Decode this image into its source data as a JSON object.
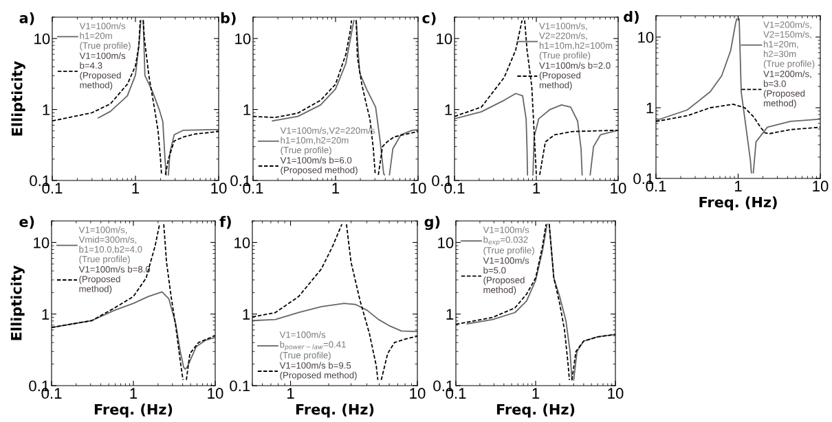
{
  "chart_data": [
    {
      "type": "line",
      "title": "a)",
      "ylabel": "Ellipticity",
      "xlim": [
        0.1,
        10
      ],
      "ylim": [
        0.1,
        20
      ],
      "xticks": [
        0.1,
        1,
        10
      ],
      "yticks": [
        0.1,
        1,
        10
      ],
      "log": "xy",
      "grid": false,
      "legend": "top left",
      "marker": "none",
      "series": [
        {
          "name": "V1=100m/s\nh1=20m\n(True profile)",
          "color": "#666666",
          "line_style": "solid",
          "x": [
            0.358,
            0.5,
            0.8,
            1.0,
            1.1,
            1.16,
            1.2,
            1.24,
            1.3,
            1.6,
            1.93,
            2.13,
            2.27,
            2.34,
            2.4,
            2.49,
            2.6,
            2.92,
            3.77,
            8.6,
            10
          ],
          "values": [
            0.76,
            0.94,
            1.56,
            3.06,
            8,
            18,
            null,
            18,
            3,
            1.8,
            1.0,
            0.68,
            0.195,
            0.12,
            null,
            0.12,
            0.25,
            0.44,
            0.51,
            0.52,
            0.52
          ]
        },
        {
          "name": "V1=100m/s\nb=4.3\n(Proposed\nmethod)",
          "color": "#000000",
          "line_style": "dashed",
          "x": [
            0.1,
            0.3,
            0.5,
            0.8,
            1.0,
            1.1,
            1.14,
            1.2,
            1.24,
            1.28,
            1.45,
            1.7,
            1.87,
            2.0,
            2.06,
            2.2,
            2.29,
            2.49,
            2.92,
            3.77,
            5.17,
            10
          ],
          "values": [
            0.69,
            0.9,
            1.2,
            2.28,
            4.1,
            8,
            18,
            null,
            18,
            10,
            3,
            1.0,
            0.5,
            0.2,
            0.12,
            null,
            0.12,
            0.2,
            0.36,
            0.41,
            0.45,
            0.49
          ]
        }
      ]
    },
    {
      "type": "line",
      "title": "b)",
      "xlim": [
        0.1,
        10
      ],
      "ylim": [
        0.1,
        20
      ],
      "xticks": [
        0.1,
        1,
        10
      ],
      "yticks": [
        0.1,
        1,
        10
      ],
      "log": "xy",
      "grid": false,
      "legend": "bottom left",
      "marker": "none",
      "series": [
        {
          "name": "V1=100m/s,V2=220m/s\nh1=10m,h2=20m\n(True profile)",
          "color": "#666666",
          "line_style": "solid",
          "x": [
            0.172,
            0.35,
            0.66,
            1.0,
            1.33,
            1.61,
            1.67,
            1.72,
            1.78,
            1.96,
            2.37,
            3.06,
            3.48,
            3.83,
            3.91,
            4.2,
            4.5,
            4.95,
            6.19,
            8.5,
            10
          ],
          "values": [
            0.69,
            0.8,
            1.16,
            1.95,
            4.4,
            14.5,
            18,
            null,
            18,
            3.28,
            1.95,
            1.08,
            0.35,
            0.125,
            0.12,
            null,
            0.12,
            0.28,
            0.44,
            0.51,
            0.52
          ]
        },
        {
          "name": "V1=100m/s b=6.0\n(Proposed method)",
          "color": "#000000",
          "line_style": "dashed",
          "x": [
            0.1,
            0.184,
            0.35,
            0.66,
            1.0,
            1.33,
            1.52,
            1.56,
            1.7,
            1.78,
            1.84,
            2.08,
            2.37,
            2.61,
            2.87,
            3.03,
            3.15,
            3.3,
            3.71,
            4.22,
            5.1,
            6.59,
            10
          ],
          "values": [
            0.8,
            0.77,
            0.89,
            1.35,
            2.27,
            5.95,
            13.5,
            18,
            null,
            18,
            5.5,
            2.27,
            1.16,
            0.74,
            0.28,
            0.12,
            null,
            0.12,
            0.3,
            0.35,
            0.41,
            0.44,
            0.49
          ]
        }
      ]
    },
    {
      "type": "line",
      "title": "c)",
      "xlim": [
        0.1,
        10
      ],
      "ylim": [
        0.1,
        20
      ],
      "xticks": [
        0.1,
        1,
        10
      ],
      "yticks": [
        0.1,
        1,
        10
      ],
      "log": "xy",
      "grid": false,
      "legend": "top right",
      "marker": "none",
      "series": [
        {
          "name": "V1=100m/s,\nV2=220m/s,\nh1=10m,h2=100m\n(True profile)",
          "color": "#666666",
          "line_style": "solid",
          "x": [
            0.1,
            0.213,
            0.405,
            0.56,
            0.68,
            0.75,
            0.77,
            0.78,
            0.85,
            0.91,
            0.94,
            1.07,
            1.47,
            2.03,
            2.63,
            3.19,
            3.52,
            3.63,
            4.1,
            4.55,
            5.0,
            6.08,
            10
          ],
          "values": [
            0.74,
            0.93,
            1.35,
            1.68,
            1.56,
            0.74,
            0.28,
            0.12,
            null,
            0.12,
            0.41,
            0.74,
            1.0,
            1.16,
            1.08,
            0.69,
            0.28,
            0.12,
            null,
            0.12,
            0.3,
            0.44,
            0.51
          ]
        },
        {
          "name": "V1=100m/s b=2.0\n(Proposed\nmethod)",
          "color": "#000000",
          "line_style": "dashed",
          "x": [
            0.1,
            0.213,
            0.405,
            0.56,
            0.66,
            0.67,
            0.7,
            0.72,
            0.77,
            0.88,
            0.94,
            1.0,
            1.05,
            1.1,
            1.29,
            1.67,
            2.8,
            10
          ],
          "values": [
            0.8,
            1.08,
            2.83,
            6.9,
            16.8,
            18,
            null,
            18,
            6.9,
            2.1,
            0.48,
            0.12,
            null,
            0.12,
            0.35,
            0.44,
            0.49,
            0.51
          ]
        }
      ]
    },
    {
      "type": "line",
      "title": "d)",
      "xlabel": "Freq. (Hz)",
      "xlim": [
        0.1,
        10
      ],
      "ylim": [
        0.1,
        20
      ],
      "xticks": [
        0.1,
        1,
        10
      ],
      "yticks": [
        0.1,
        1,
        10
      ],
      "log": "xy",
      "grid": false,
      "legend": "top right",
      "marker": "none",
      "series": [
        {
          "name": "V1=200m/s,\nV2=150m/s,\nh1=20m,\nh2=30m\n(True profile)",
          "color": "#666666",
          "line_style": "solid",
          "x": [
            0.1,
            0.24,
            0.457,
            0.63,
            0.81,
            0.93,
            0.96,
            1.0,
            1.03,
            1.09,
            1.24,
            1.41,
            1.45,
            1.49,
            1.53,
            1.65,
            2.27,
            4.32,
            10
          ],
          "values": [
            0.66,
            0.93,
            1.68,
            2.83,
            6.4,
            15.6,
            18,
            null,
            18,
            1.68,
            0.55,
            0.18,
            0.12,
            null,
            0.12,
            0.33,
            0.53,
            0.64,
            0.69
          ]
        },
        {
          "name": "V1=200m/s,\nb=3.0\n(Proposed\nmethod)",
          "color": "#000000",
          "line_style": "dashed",
          "x": [
            0.1,
            0.24,
            0.457,
            0.87,
            1.2,
            1.55,
            1.87,
            2.13,
            2.42,
            4.32,
            10
          ],
          "values": [
            0.64,
            0.77,
            1.0,
            1.12,
            1.0,
            0.74,
            0.53,
            0.44,
            0.43,
            0.49,
            0.53
          ]
        }
      ]
    },
    {
      "type": "line",
      "title": "e)",
      "xlabel": "Freq. (Hz)",
      "ylabel": "Ellipticity",
      "xlim": [
        0.1,
        10
      ],
      "ylim": [
        0.1,
        20
      ],
      "xticks": [
        0.1,
        1,
        10
      ],
      "yticks": [
        0.1,
        1,
        10
      ],
      "log": "xy",
      "grid": false,
      "legend": "top left",
      "marker": "none",
      "series": [
        {
          "name": "V1=100m/s,\nVmid=300m/s,\nb1=10.0,b2=4.0\n(True profile)",
          "color": "#666666",
          "line_style": "solid",
          "x": [
            0.1,
            0.31,
            0.59,
            1.0,
            1.52,
            2.24,
            2.71,
            3.29,
            3.74,
            4.12,
            4.3,
            4.53,
            5.86,
            7.58,
            10
          ],
          "values": [
            0.65,
            0.81,
            1.13,
            1.41,
            1.76,
            2.04,
            1.64,
            0.73,
            0.3,
            0.18,
            0.17,
            0.18,
            0.35,
            0.43,
            0.47
          ]
        },
        {
          "name": "V1=100m/s b=8.0\n(Proposed\nmethod)",
          "color": "#000000",
          "line_style": "dashed",
          "x": [
            0.1,
            0.31,
            0.59,
            1.0,
            1.43,
            1.84,
            2.09,
            2.2,
            2.35,
            2.54,
            2.89,
            3.29,
            3.74,
            4.04,
            4.25,
            4.44,
            4.9,
            6.25,
            10
          ],
          "values": [
            0.65,
            0.81,
            1.22,
            1.76,
            3.19,
            8.9,
            18,
            null,
            18,
            5.3,
            1.76,
            0.68,
            0.22,
            0.12,
            null,
            0.12,
            0.28,
            0.4,
            0.5
          ]
        }
      ]
    },
    {
      "type": "line",
      "title": "f)",
      "xlabel": "Freq. (Hz)",
      "xlim": [
        0.5,
        10
      ],
      "ylim": [
        0.1,
        20
      ],
      "xticks": [
        1,
        10
      ],
      "yticks": [
        0.1,
        1,
        10
      ],
      "log": "xy",
      "grid": false,
      "legend": "bottom left",
      "marker": "none",
      "series": [
        {
          "name": "V1=100m/s\nb$_{power−law}$=0.41\n(True profile)",
          "color": "#666666",
          "line_style": "solid",
          "x": [
            0.5,
            0.76,
            1.16,
            1.75,
            2.65,
            3.26,
            4.01,
            4.94,
            6.08,
            7.48,
            10
          ],
          "values": [
            0.81,
            0.84,
            1.05,
            1.27,
            1.41,
            1.36,
            1.13,
            0.84,
            0.68,
            0.58,
            0.57
          ]
        },
        {
          "name": "V1=100m/s b=9.5\n(Proposed method)",
          "color": "#000000",
          "line_style": "dashed",
          "x": [
            0.5,
            0.76,
            1.16,
            1.75,
            2.15,
            2.54,
            2.65,
            2.76,
            3.0,
            3.54,
            4.18,
            4.74,
            4.88,
            5.0,
            5.19,
            5.83,
            6.6,
            8.12,
            10
          ],
          "values": [
            0.91,
            1.05,
            1.76,
            4.27,
            8.9,
            18,
            null,
            18,
            5.3,
            1.52,
            0.54,
            0.19,
            0.12,
            null,
            0.12,
            0.28,
            0.4,
            0.45,
            0.49
          ]
        }
      ]
    },
    {
      "type": "line",
      "title": "g)",
      "xlabel": "Freq. (Hz)",
      "xlim": [
        0.1,
        10
      ],
      "ylim": [
        0.1,
        20
      ],
      "xticks": [
        0.1,
        1,
        10
      ],
      "yticks": [
        0.1,
        1,
        10
      ],
      "log": "xy",
      "grid": false,
      "legend": "top left",
      "marker": "none",
      "series": [
        {
          "name": "V1=100m/s\nb$_{exp}$=0.032\n(True profile)",
          "color": "#666666",
          "line_style": "solid",
          "x": [
            0.139,
            0.29,
            0.55,
            0.77,
            1.0,
            1.22,
            1.39,
            1.43,
            1.48,
            1.69,
            2.0,
            2.4,
            2.7,
            2.85,
            2.92,
            3.0,
            3.3,
            4.0,
            6.0,
            10
          ],
          "values": [
            0.73,
            0.84,
            1.05,
            1.52,
            2.96,
            7.7,
            18,
            null,
            18,
            3.2,
            1.76,
            0.8,
            0.3,
            0.12,
            null,
            0.12,
            0.3,
            0.42,
            0.48,
            0.52
          ]
        },
        {
          "name": "V1=100m/s\nb=5.0\n(Proposed\nmethod)",
          "color": "#000000",
          "line_style": "dashed",
          "x": [
            0.1,
            0.29,
            0.55,
            0.77,
            1.0,
            1.22,
            1.35,
            1.42,
            1.48,
            1.69,
            2.0,
            2.3,
            2.55,
            2.65,
            2.75,
            2.85,
            3.2,
            4.0,
            6.0,
            10
          ],
          "values": [
            0.72,
            0.9,
            1.22,
            1.9,
            3.2,
            8.9,
            18,
            null,
            18,
            3.2,
            1.41,
            0.6,
            0.2,
            0.12,
            null,
            0.12,
            0.3,
            0.42,
            0.48,
            0.52
          ]
        }
      ]
    }
  ]
}
